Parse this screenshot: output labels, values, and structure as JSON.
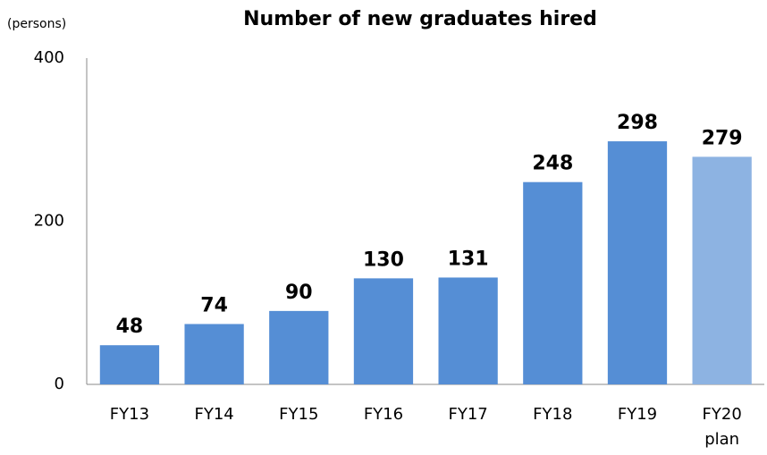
{
  "chart_data": {
    "type": "bar",
    "title": "Number of new graduates hired",
    "ylabel": "(persons)",
    "categories": [
      "FY13",
      "FY14",
      "FY15",
      "FY16",
      "FY17",
      "FY18",
      "FY19",
      "FY20 plan"
    ],
    "values": [
      48,
      74,
      90,
      130,
      131,
      248,
      298,
      279
    ],
    "colors": [
      "#558ed5",
      "#558ed5",
      "#558ed5",
      "#558ed5",
      "#558ed5",
      "#558ed5",
      "#558ed5",
      "#8db3e2"
    ],
    "ylim": [
      0,
      400
    ],
    "yticks": [
      0,
      200,
      400
    ],
    "grid": false
  }
}
